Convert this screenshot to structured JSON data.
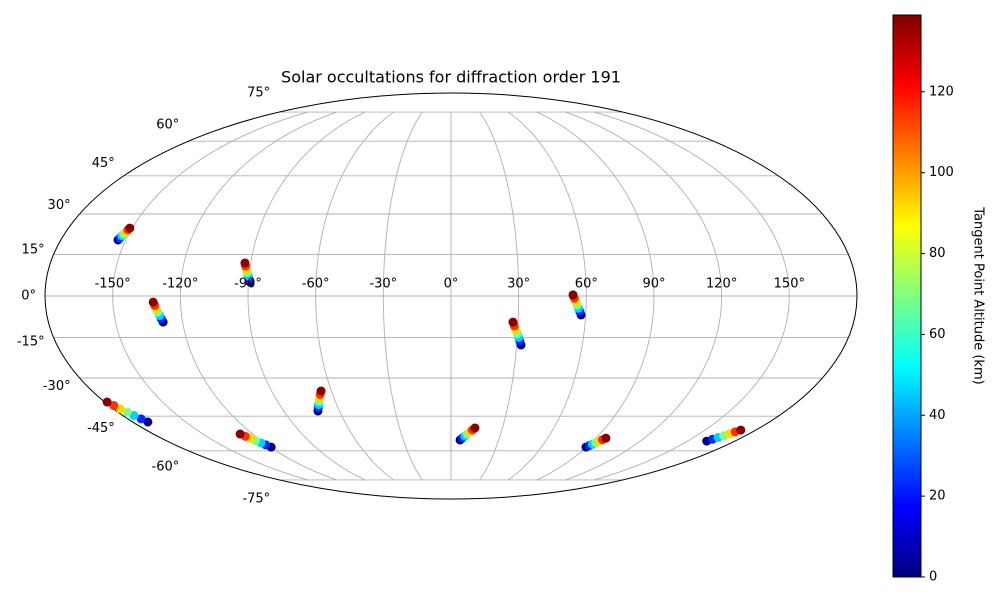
{
  "chart_data": {
    "type": "scatter",
    "projection": "mollweide",
    "title": "Solar occultations for diffraction order 191",
    "grid": true,
    "xticks": [
      {
        "value": -150,
        "label": "-150°"
      },
      {
        "value": -120,
        "label": "-120°"
      },
      {
        "value": -90,
        "label": "-90°"
      },
      {
        "value": -60,
        "label": "-60°"
      },
      {
        "value": -30,
        "label": "-30°"
      },
      {
        "value": 0,
        "label": "0°"
      },
      {
        "value": 30,
        "label": "30°"
      },
      {
        "value": 60,
        "label": "60°"
      },
      {
        "value": 90,
        "label": "90°"
      },
      {
        "value": 120,
        "label": "120°"
      },
      {
        "value": 150,
        "label": "150°"
      }
    ],
    "yticks": [
      {
        "value": -75,
        "label": "-75°"
      },
      {
        "value": -60,
        "label": "-60°"
      },
      {
        "value": -45,
        "label": "-45°"
      },
      {
        "value": -30,
        "label": "-30°"
      },
      {
        "value": -15,
        "label": "-15°"
      },
      {
        "value": 0,
        "label": "0°"
      },
      {
        "value": 15,
        "label": "15°"
      },
      {
        "value": 30,
        "label": "30°"
      },
      {
        "value": 45,
        "label": "45°"
      },
      {
        "value": 60,
        "label": "60°"
      },
      {
        "value": 75,
        "label": "75°"
      }
    ],
    "colorbar": {
      "label": "Tangent Point Altitude (km)",
      "colormap": "jet",
      "lim": [
        0,
        139
      ],
      "ticks": [
        0,
        20,
        40,
        60,
        80,
        100,
        120
      ]
    },
    "series": [
      {
        "x": [
          -153.6,
          -153.2,
          -152.8,
          -152.4,
          -151.9,
          -151.5,
          -151.1
        ],
        "y": [
          20.3,
          21.0,
          21.8,
          22.5,
          23.2,
          24.0,
          24.7
        ],
        "c": [
          0,
          23,
          46,
          69,
          92,
          115,
          138
        ]
      },
      {
        "x": [
          -128.7,
          -129.3,
          -129.8,
          -130.4,
          -131.0,
          -131.5,
          -132.1
        ],
        "y": [
          -9.4,
          -8.2,
          -7.0,
          -5.8,
          -4.6,
          -3.4,
          -2.2
        ],
        "c": [
          0,
          23,
          46,
          69,
          92,
          115,
          138
        ]
      },
      {
        "x": [
          -89.3,
          -89.9,
          -90.4,
          -91.0,
          -91.5,
          -92.1,
          -92.6
        ],
        "y": [
          5.0,
          6.2,
          7.3,
          8.5,
          9.6,
          10.8,
          11.9
        ],
        "c": [
          0,
          23,
          46,
          69,
          92,
          115,
          138
        ]
      },
      {
        "x": [
          -171.4,
          -172.6,
          -173.9,
          -175.1,
          -176.3,
          -177.6,
          -178.8
        ],
        "y": [
          -47.4,
          -46.1,
          -44.7,
          -43.4,
          -42.0,
          -40.7,
          -39.3
        ],
        "c": [
          0,
          23,
          46,
          69,
          92,
          115,
          138
        ]
      },
      {
        "x": [
          -119.4,
          -120.8,
          -122.1,
          -123.5,
          -124.8,
          -126.2,
          -127.5
        ],
        "y": [
          -58.3,
          -57.3,
          -56.4,
          -55.4,
          -54.4,
          -53.5,
          -52.5
        ],
        "c": [
          0,
          23,
          46,
          69,
          92,
          115,
          138
        ]
      },
      {
        "x": [
          -71.6,
          -70.5,
          -69.5,
          -68.4,
          -67.3,
          -66.3,
          -65.2
        ],
        "y": [
          -42.9,
          -41.6,
          -40.3,
          -39.0,
          -37.6,
          -36.3,
          -35.0
        ],
        "c": [
          0,
          23,
          46,
          69,
          92,
          115,
          138
        ]
      },
      {
        "x": [
          5.7,
          7.1,
          8.5,
          9.9,
          11.2,
          12.6,
          14.0
        ],
        "y": [
          -55.1,
          -54.2,
          -53.4,
          -52.5,
          -51.6,
          -50.8,
          -49.9
        ],
        "c": [
          0,
          23,
          46,
          69,
          92,
          115,
          138
        ]
      },
      {
        "x": [
          32.0,
          31.3,
          30.6,
          29.9,
          29.1,
          28.4,
          27.7
        ],
        "y": [
          -17.7,
          -16.3,
          -14.9,
          -13.6,
          -12.2,
          -10.8,
          -9.4
        ],
        "c": [
          0,
          23,
          46,
          69,
          92,
          115,
          138
        ]
      },
      {
        "x": [
          57.9,
          57.3,
          56.6,
          56.0,
          55.4,
          54.7,
          54.1
        ],
        "y": [
          -6.8,
          -5.6,
          -4.4,
          -3.2,
          -2.0,
          -0.8,
          0.4
        ],
        "c": [
          0,
          23,
          46,
          69,
          92,
          115,
          138
        ]
      },
      {
        "x": [
          89.6,
          90.7,
          91.8,
          92.9,
          94.0,
          95.1,
          96.2
        ],
        "y": [
          -58.3,
          -57.6,
          -57.0,
          -56.3,
          -55.6,
          -55.0,
          -54.3
        ],
        "c": [
          0,
          23,
          46,
          69,
          92,
          115,
          138
        ]
      },
      {
        "x": [
          162.1,
          163.6,
          165.1,
          166.6,
          168.1,
          169.6,
          171.1
        ],
        "y": [
          -55.6,
          -54.8,
          -54.0,
          -53.2,
          -52.4,
          -51.6,
          -50.8
        ],
        "c": [
          0,
          23,
          46,
          69,
          92,
          115,
          138
        ]
      }
    ]
  }
}
